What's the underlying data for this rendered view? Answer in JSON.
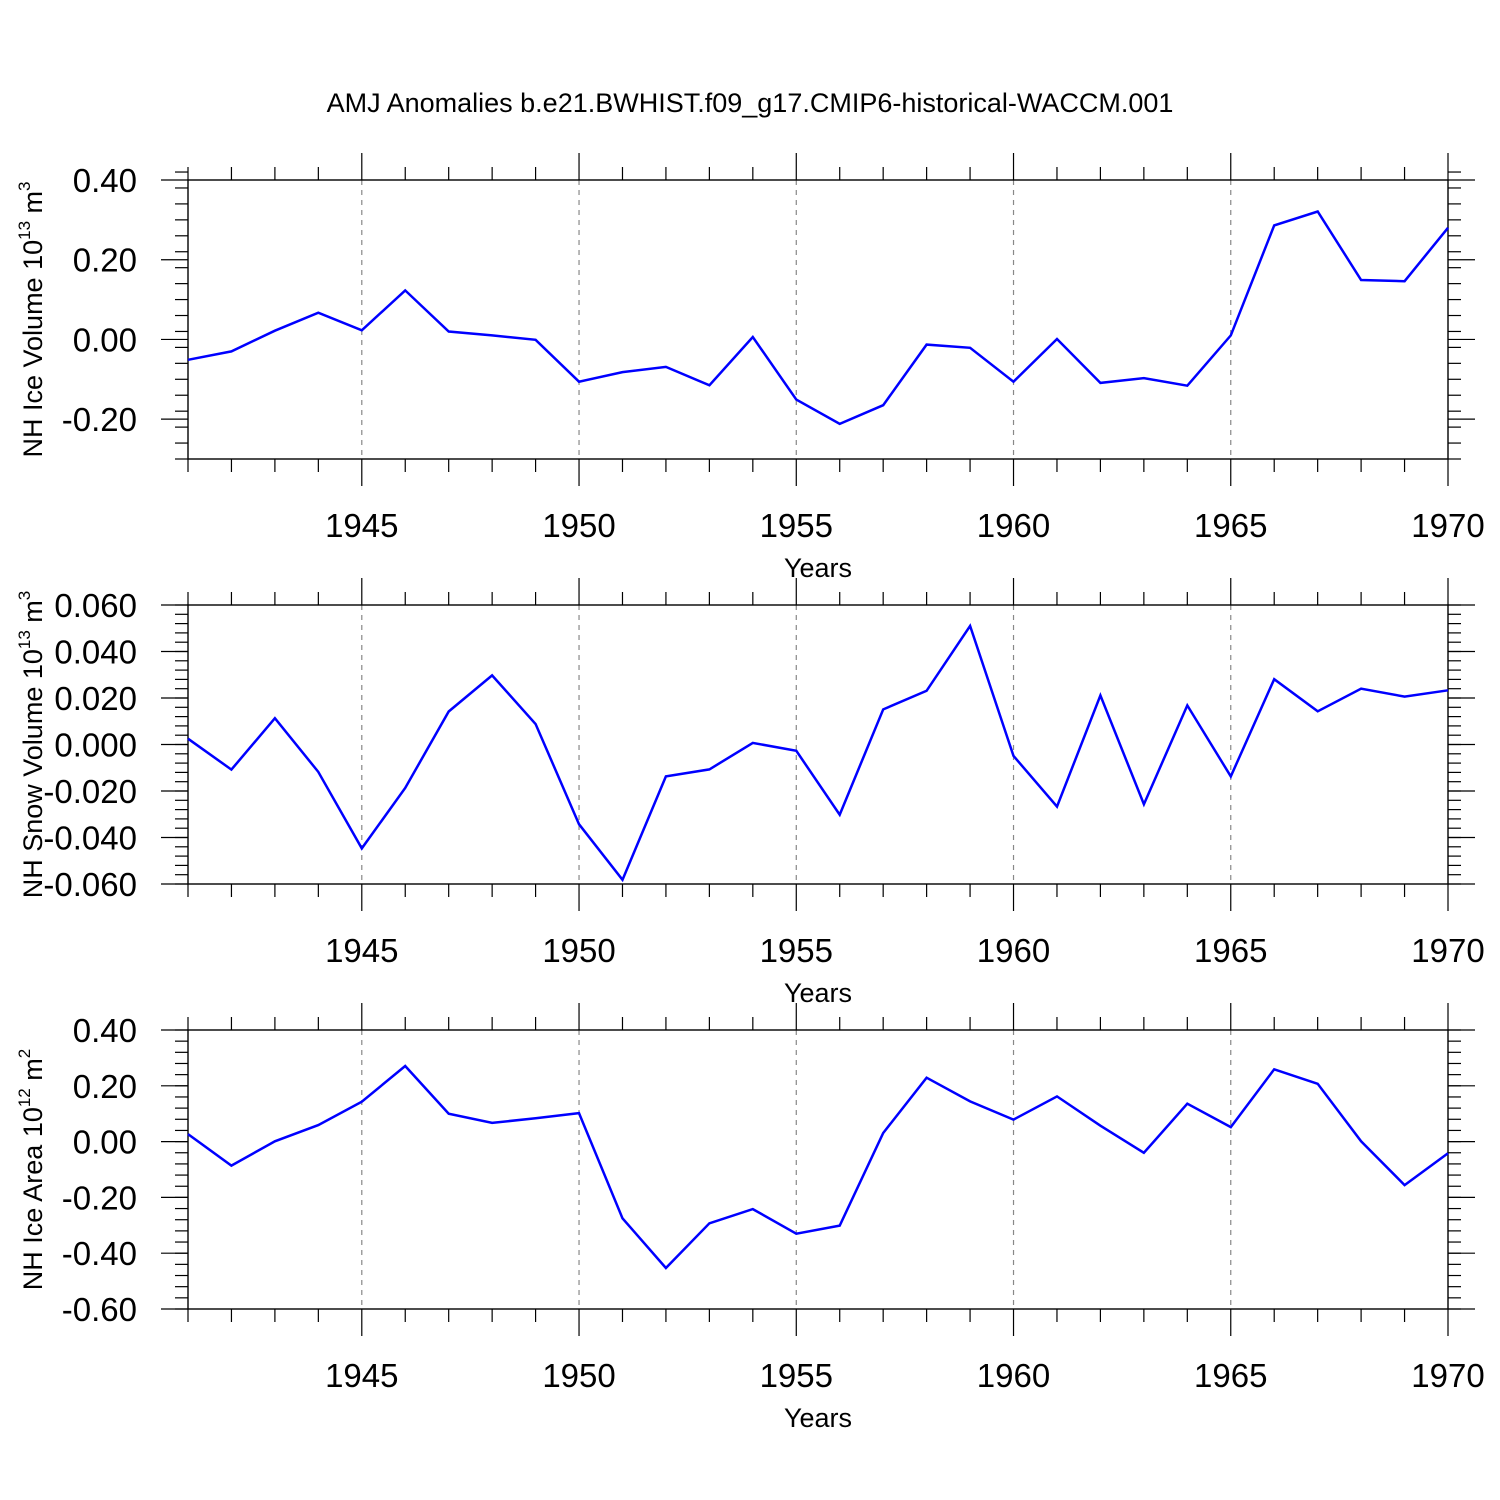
{
  "title": "AMJ Anomalies b.e21.BWHIST.f09_g17.CMIP6-historical-WACCM.001",
  "chart_data": [
    {
      "type": "line",
      "ylabel_main": "NH Ice Volume 10",
      "ylabel_sup": "13",
      "ylabel_unit": " m",
      "ylabel_unit_sup": "3",
      "xlabel": "Years",
      "xlim": [
        1941,
        1970
      ],
      "ylim": [
        -0.3,
        0.4
      ],
      "yticks": [
        -0.2,
        0.0,
        0.2,
        0.4
      ],
      "ytick_labels": [
        "-0.20",
        "0.00",
        "0.20",
        "0.40"
      ],
      "yminor": 0.04,
      "xticks": [
        1945,
        1950,
        1955,
        1960,
        1965,
        1970
      ],
      "xtick_labels": [
        "1945",
        "1950",
        "1955",
        "1960",
        "1965",
        "1970"
      ],
      "color": "#0000ff",
      "x": [
        1941,
        1942,
        1943,
        1944,
        1945,
        1946,
        1947,
        1948,
        1949,
        1950,
        1951,
        1952,
        1953,
        1954,
        1955,
        1956,
        1957,
        1958,
        1959,
        1960,
        1961,
        1962,
        1963,
        1964,
        1965,
        1966,
        1967,
        1968,
        1969,
        1970
      ],
      "values": [
        -0.051,
        -0.03,
        0.022,
        0.067,
        0.023,
        0.123,
        0.02,
        0.01,
        -0.001,
        -0.106,
        -0.082,
        -0.069,
        -0.115,
        0.006,
        -0.151,
        -0.212,
        -0.165,
        -0.013,
        -0.021,
        -0.106,
        0.001,
        -0.109,
        -0.097,
        -0.116,
        0.01,
        0.286,
        0.321,
        0.149,
        0.146,
        0.28
      ]
    },
    {
      "type": "line",
      "ylabel_main": "NH Snow Volume 10",
      "ylabel_sup": "13",
      "ylabel_unit": " m",
      "ylabel_unit_sup": "3",
      "xlabel": "Years",
      "xlim": [
        1941,
        1970
      ],
      "ylim": [
        -0.06,
        0.06
      ],
      "yticks": [
        -0.06,
        -0.04,
        -0.02,
        0.0,
        0.02,
        0.04,
        0.06
      ],
      "ytick_labels": [
        "-0.060",
        "-0.040",
        "-0.020",
        "0.000",
        "0.020",
        "0.040",
        "0.060"
      ],
      "yminor": 0.004,
      "xticks": [
        1945,
        1950,
        1955,
        1960,
        1965,
        1970
      ],
      "xtick_labels": [
        "1945",
        "1950",
        "1955",
        "1960",
        "1965",
        "1970"
      ],
      "color": "#0000ff",
      "x": [
        1941,
        1942,
        1943,
        1944,
        1945,
        1946,
        1947,
        1948,
        1949,
        1950,
        1951,
        1952,
        1953,
        1954,
        1955,
        1956,
        1957,
        1958,
        1959,
        1960,
        1961,
        1962,
        1963,
        1964,
        1965,
        1966,
        1967,
        1968,
        1969,
        1970
      ],
      "values": [
        0.0025,
        -0.0108,
        0.0113,
        -0.0118,
        -0.0447,
        -0.0187,
        0.0142,
        0.0297,
        0.0088,
        -0.0343,
        -0.0582,
        -0.0137,
        -0.0107,
        0.0007,
        -0.0027,
        -0.0302,
        0.0151,
        0.0231,
        0.051,
        -0.0049,
        -0.0267,
        0.0211,
        -0.0257,
        0.0168,
        -0.0137,
        0.0281,
        0.0143,
        0.024,
        0.0206,
        0.0233
      ]
    },
    {
      "type": "line",
      "ylabel_main": "NH Ice Area 10",
      "ylabel_sup": "12",
      "ylabel_unit": " m",
      "ylabel_unit_sup": "2",
      "xlabel": "Years",
      "xlim": [
        1941,
        1970
      ],
      "ylim": [
        -0.6,
        0.4
      ],
      "yticks": [
        -0.6,
        -0.4,
        -0.2,
        0.0,
        0.2,
        0.4
      ],
      "ytick_labels": [
        "-0.60",
        "-0.40",
        "-0.20",
        "0.00",
        "0.20",
        "0.40"
      ],
      "yminor": 0.04,
      "xticks": [
        1945,
        1950,
        1955,
        1960,
        1965,
        1970
      ],
      "xtick_labels": [
        "1945",
        "1950",
        "1955",
        "1960",
        "1965",
        "1970"
      ],
      "color": "#0000ff",
      "x": [
        1941,
        1942,
        1943,
        1944,
        1945,
        1946,
        1947,
        1948,
        1949,
        1950,
        1951,
        1952,
        1953,
        1954,
        1955,
        1956,
        1957,
        1958,
        1959,
        1960,
        1961,
        1962,
        1963,
        1964,
        1965,
        1966,
        1967,
        1968,
        1969,
        1970
      ],
      "values": [
        0.027,
        -0.086,
        0.001,
        0.059,
        0.143,
        0.271,
        0.1,
        0.067,
        0.084,
        0.102,
        -0.275,
        -0.453,
        -0.293,
        -0.242,
        -0.33,
        -0.301,
        0.031,
        0.229,
        0.144,
        0.079,
        0.162,
        0.057,
        -0.04,
        0.136,
        0.052,
        0.259,
        0.207,
        0.001,
        -0.156,
        -0.042
      ]
    }
  ]
}
